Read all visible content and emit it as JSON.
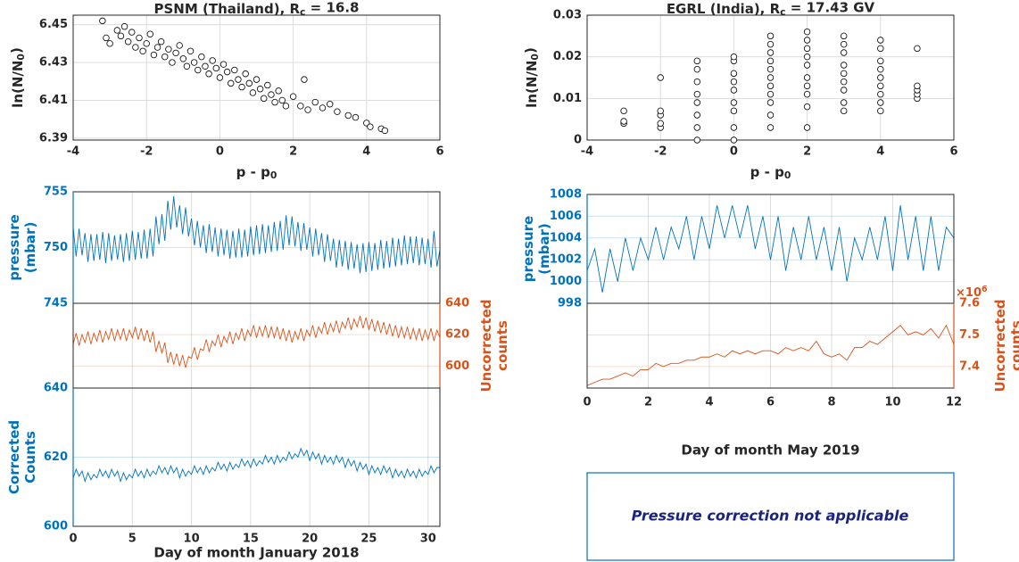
{
  "chart_data": [
    {
      "type": "scatter",
      "title": [
        "PSNM (Thailand), R",
        "c",
        " = 16.8"
      ],
      "xlabel": [
        "p - p",
        "0"
      ],
      "ylabel": [
        "ln(N/N",
        "0",
        ")"
      ],
      "xlim": [
        -4,
        6
      ],
      "xticks": [
        -4,
        -2,
        0,
        2,
        4,
        6
      ],
      "ylim": [
        6.389,
        6.455
      ],
      "yticks": [
        6.39,
        6.41,
        6.43,
        6.45
      ],
      "grid": true,
      "color": "#000000",
      "x": [
        -3.2,
        -3.1,
        -3,
        -2.8,
        -2.7,
        -2.6,
        -2.5,
        -2.4,
        -2.3,
        -2.2,
        -2.1,
        -2,
        -1.9,
        -1.8,
        -1.7,
        -1.6,
        -1.5,
        -1.4,
        -1.3,
        -1.2,
        -1.1,
        -1,
        -0.9,
        -0.8,
        -0.7,
        -0.6,
        -0.5,
        -0.4,
        -0.3,
        -0.2,
        -0.1,
        0,
        0.1,
        0.2,
        0.3,
        0.4,
        0.5,
        0.6,
        0.7,
        0.8,
        0.9,
        1,
        1.1,
        1.2,
        1.3,
        1.4,
        1.5,
        1.6,
        1.7,
        1.8,
        2,
        2.2,
        2.3,
        2.4,
        2.6,
        2.8,
        3,
        3.2,
        3.5,
        3.7,
        4,
        4.1,
        4.4,
        4.5
      ],
      "y": [
        6.452,
        6.443,
        6.44,
        6.447,
        6.444,
        6.449,
        6.441,
        6.446,
        6.438,
        6.443,
        6.436,
        6.44,
        6.445,
        6.434,
        6.438,
        6.441,
        6.433,
        6.437,
        6.43,
        6.435,
        6.439,
        6.432,
        6.428,
        6.436,
        6.43,
        6.426,
        6.433,
        6.428,
        6.424,
        6.431,
        6.427,
        6.422,
        6.429,
        6.425,
        6.419,
        6.426,
        6.421,
        6.417,
        6.424,
        6.419,
        6.414,
        6.421,
        6.416,
        6.411,
        6.418,
        6.413,
        6.409,
        6.415,
        6.41,
        6.407,
        6.412,
        6.407,
        6.421,
        6.405,
        6.409,
        6.406,
        6.408,
        6.404,
        6.402,
        6.401,
        6.398,
        6.396,
        6.395,
        6.394
      ]
    },
    {
      "type": "scatter",
      "title": [
        "EGRL (India), R",
        "c",
        " = 17.43 GV"
      ],
      "xlabel": [
        "p - p",
        "0"
      ],
      "ylabel": [
        "ln(N/N",
        "0",
        ")"
      ],
      "xlim": [
        -4,
        6
      ],
      "xticks": [
        -4,
        -2,
        0,
        2,
        4,
        6
      ],
      "ylim": [
        0,
        0.03
      ],
      "yticks": [
        0,
        0.01,
        0.02,
        0.03
      ],
      "grid": true,
      "color": "#000000",
      "x": [
        -3,
        -3,
        -3,
        -2,
        -2,
        -2,
        -2,
        -2,
        -1,
        -1,
        -1,
        -1,
        -1,
        -1,
        -1,
        -1,
        0,
        0,
        0,
        0,
        0,
        0,
        0,
        0,
        0,
        1,
        1,
        1,
        1,
        1,
        1,
        1,
        1,
        1,
        1,
        1,
        2,
        2,
        2,
        2,
        2,
        2,
        2,
        2,
        2,
        2,
        3,
        3,
        3,
        3,
        3,
        3,
        3,
        3,
        3,
        4,
        4,
        4,
        4,
        4,
        4,
        4,
        4,
        4,
        5,
        5,
        5,
        5,
        5
      ],
      "y": [
        0.004,
        0.0045,
        0.007,
        0.003,
        0.004,
        0.006,
        0.007,
        0.015,
        0,
        0.003,
        0.006,
        0.009,
        0.011,
        0.014,
        0.017,
        0.019,
        0,
        0.003,
        0.007,
        0.009,
        0.012,
        0.014,
        0.016,
        0.019,
        0.02,
        0.003,
        0.006,
        0.009,
        0.011,
        0.013,
        0.015,
        0.017,
        0.019,
        0.021,
        0.023,
        0.025,
        0.003,
        0.008,
        0.011,
        0.013,
        0.015,
        0.018,
        0.02,
        0.022,
        0.024,
        0.026,
        0.007,
        0.009,
        0.012,
        0.014,
        0.016,
        0.018,
        0.021,
        0.023,
        0.025,
        0.007,
        0.009,
        0.011,
        0.013,
        0.015,
        0.017,
        0.019,
        0.022,
        0.024,
        0.01,
        0.011,
        0.012,
        0.013,
        0.022
      ]
    },
    {
      "type": "line",
      "xlabel": "Day of month January 2018",
      "xlim": [
        0,
        31
      ],
      "xticks": [
        0,
        5,
        10,
        15,
        20,
        25,
        30
      ],
      "grid": true,
      "x": [
        0,
        0.25,
        0.5,
        0.75,
        1,
        1.25,
        1.5,
        1.75,
        2,
        2.25,
        2.5,
        2.75,
        3,
        3.25,
        3.5,
        3.75,
        4,
        4.25,
        4.5,
        4.75,
        5,
        5.25,
        5.5,
        5.75,
        6,
        6.25,
        6.5,
        6.75,
        7,
        7.25,
        7.5,
        7.75,
        8,
        8.25,
        8.5,
        8.75,
        9,
        9.25,
        9.5,
        9.75,
        10,
        10.25,
        10.5,
        10.75,
        11,
        11.25,
        11.5,
        11.75,
        12,
        12.25,
        12.5,
        12.75,
        13,
        13.25,
        13.5,
        13.75,
        14,
        14.25,
        14.5,
        14.75,
        15,
        15.25,
        15.5,
        15.75,
        16,
        16.25,
        16.5,
        16.75,
        17,
        17.25,
        17.5,
        17.75,
        18,
        18.25,
        18.5,
        18.75,
        19,
        19.25,
        19.5,
        19.75,
        20,
        20.25,
        20.5,
        20.75,
        21,
        21.25,
        21.5,
        21.75,
        22,
        22.25,
        22.5,
        22.75,
        23,
        23.25,
        23.5,
        23.75,
        24,
        24.25,
        24.5,
        24.75,
        25,
        25.25,
        25.5,
        25.75,
        26,
        26.25,
        26.5,
        26.75,
        27,
        27.25,
        27.5,
        27.75,
        28,
        28.25,
        28.5,
        28.75,
        29,
        29.25,
        29.5,
        29.75,
        30,
        30.25,
        30.5,
        30.75,
        31
      ],
      "series": [
        {
          "ylabel": [
            "pressure",
            "(mbar)"
          ],
          "side": "left",
          "color": "#0072BD",
          "ylim": [
            745,
            755
          ],
          "yticks": [
            745,
            750,
            755
          ],
          "values": [
            751.8,
            749.2,
            751.7,
            749.3,
            751.3,
            748.7,
            751.2,
            748.8,
            751.2,
            748.9,
            751.4,
            748.6,
            751.3,
            748.8,
            751.1,
            748.9,
            751.2,
            748.7,
            751.3,
            748.8,
            751.5,
            748.9,
            751.4,
            749,
            751.6,
            749,
            751.7,
            749.2,
            752.8,
            750.3,
            753,
            750.6,
            754.2,
            751.6,
            754.6,
            751.8,
            753.8,
            751.2,
            753.6,
            751,
            752.6,
            750.2,
            752.4,
            750,
            752,
            749.5,
            752.1,
            749.6,
            751.8,
            749.2,
            751.7,
            749.3,
            751.6,
            749,
            751.5,
            749.1,
            751.7,
            749.1,
            751.6,
            749.2,
            751.9,
            749.3,
            752,
            749.4,
            752.1,
            749.5,
            752,
            749.6,
            752.3,
            749.7,
            752.4,
            749.8,
            752.9,
            750.2,
            752.8,
            750.1,
            752.3,
            749.7,
            752.2,
            749.8,
            751.8,
            749.2,
            751.7,
            749.3,
            751.3,
            748.7,
            751.2,
            748.8,
            750.8,
            748.2,
            750.7,
            748.3,
            750.6,
            748,
            750.5,
            748.1,
            750.3,
            747.7,
            750.4,
            747.8,
            750.5,
            747.9,
            750.4,
            748,
            750.7,
            748.1,
            750.6,
            748.2,
            750.9,
            748.3,
            750.8,
            748.4,
            751.1,
            748.5,
            751,
            748.6,
            751,
            748.4,
            750.9,
            748.5,
            750.8,
            748.2,
            751.5,
            748.3,
            749.8
          ]
        },
        {
          "ylabel": [
            "Uncorrected",
            "counts"
          ],
          "side": "right",
          "color": "#D95319",
          "ylim": [
            586,
            640
          ],
          "yticks": [
            600,
            620,
            640
          ],
          "values": [
            614,
            621,
            613,
            620,
            615,
            622,
            614,
            621,
            616,
            623,
            615,
            622,
            617,
            624,
            616,
            623,
            617,
            624,
            616,
            623,
            618,
            625,
            617,
            624,
            616,
            623,
            615,
            622,
            609,
            616,
            608,
            615,
            602,
            609,
            601,
            608,
            600,
            607,
            599,
            606,
            605,
            612,
            604,
            611,
            610,
            617,
            609,
            616,
            613,
            620,
            612,
            619,
            615,
            622,
            614,
            621,
            617,
            624,
            616,
            623,
            619,
            626,
            618,
            625,
            619,
            626,
            618,
            625,
            618,
            625,
            617,
            624,
            616,
            623,
            615,
            622,
            617,
            624,
            616,
            623,
            619,
            626,
            618,
            625,
            621,
            628,
            620,
            627,
            622,
            629,
            621,
            628,
            624,
            631,
            623,
            630,
            625,
            632,
            624,
            631,
            623,
            630,
            622,
            629,
            621,
            628,
            620,
            627,
            619,
            626,
            618,
            625,
            618,
            625,
            617,
            624,
            617,
            624,
            616,
            623,
            617,
            624,
            616,
            623,
            618
          ]
        },
        {
          "ylabel": [
            "Corrected",
            "Counts"
          ],
          "side": "left",
          "color": "#0072BD",
          "ylim": [
            600,
            640
          ],
          "yticks": [
            600,
            620,
            640
          ],
          "values": [
            614,
            616.5,
            614.5,
            616,
            613,
            615.5,
            613.5,
            615,
            614,
            616.5,
            614.5,
            616,
            614,
            616.5,
            614.5,
            616,
            613,
            615.5,
            613.5,
            615,
            614,
            616.5,
            614.5,
            616,
            614,
            616.5,
            614.5,
            616,
            615,
            617.5,
            615.5,
            617,
            615,
            617.5,
            615.5,
            617,
            614,
            616.5,
            614.5,
            616,
            615,
            617.5,
            615.5,
            617,
            615,
            617.5,
            615.5,
            617,
            616,
            618.5,
            616.5,
            618,
            616,
            618.5,
            616.5,
            618,
            617,
            619.5,
            617.5,
            619,
            617,
            619.5,
            617.5,
            619,
            618,
            620.5,
            618.5,
            620,
            618,
            620.5,
            618.5,
            620,
            619,
            621.5,
            619.5,
            621,
            620,
            622.5,
            620.5,
            622,
            619,
            621.5,
            619.5,
            621,
            618,
            620.5,
            618.5,
            620,
            618,
            620.5,
            618.5,
            620,
            617,
            619.5,
            617.5,
            619,
            616,
            618.5,
            616.5,
            618,
            615,
            617.5,
            615.5,
            617,
            615,
            617.5,
            615.5,
            617,
            614,
            616.5,
            614.5,
            616,
            614,
            616.5,
            614.5,
            616,
            614,
            616.5,
            614.5,
            616,
            615,
            617.5,
            615.5,
            617,
            617
          ]
        }
      ]
    },
    {
      "type": "line",
      "xlabel": "Day of month May 2019",
      "xlim": [
        0,
        12
      ],
      "xticks": [
        0,
        2,
        4,
        6,
        8,
        10,
        12
      ],
      "grid": true,
      "x": [
        0,
        0.25,
        0.5,
        0.75,
        1,
        1.25,
        1.5,
        1.75,
        2,
        2.25,
        2.5,
        2.75,
        3,
        3.25,
        3.5,
        3.75,
        4,
        4.25,
        4.5,
        4.75,
        5,
        5.25,
        5.5,
        5.75,
        6,
        6.25,
        6.5,
        6.75,
        7,
        7.25,
        7.5,
        7.75,
        8,
        8.25,
        8.5,
        8.75,
        9,
        9.25,
        9.5,
        9.75,
        10,
        10.25,
        10.5,
        10.75,
        11,
        11.25,
        11.5,
        11.75,
        12
      ],
      "series": [
        {
          "ylabel": [
            "pressure",
            "(mbar)"
          ],
          "side": "left",
          "color": "#0072BD",
          "ylim": [
            998,
            1008
          ],
          "yticks": [
            998,
            1000,
            1002,
            1004,
            1006,
            1008
          ],
          "values": [
            1001,
            1003,
            999,
            1003,
            1000,
            1004,
            1001,
            1004,
            1002,
            1005,
            1002,
            1005,
            1003,
            1006,
            1002,
            1006,
            1003,
            1007,
            1004,
            1007,
            1004,
            1007,
            1003,
            1006,
            1002,
            1006,
            1001,
            1005,
            1002,
            1006,
            1002,
            1005,
            1001,
            1005,
            1000,
            1004,
            1002,
            1005,
            1002,
            1006,
            1001,
            1007,
            1002,
            1006,
            1001,
            1006,
            1001,
            1005,
            1004
          ]
        },
        {
          "ylabel": [
            "Uncorrected",
            "counts"
          ],
          "side": "right",
          "color": "#D95319",
          "ylim": [
            7.332,
            7.6
          ],
          "yticks": [
            7.4,
            7.5,
            7.6
          ],
          "exponent": [
            "×10",
            "6"
          ],
          "values": [
            7.34,
            7.35,
            7.36,
            7.36,
            7.37,
            7.38,
            7.37,
            7.39,
            7.39,
            7.41,
            7.4,
            7.41,
            7.41,
            7.42,
            7.42,
            7.43,
            7.43,
            7.44,
            7.43,
            7.45,
            7.44,
            7.45,
            7.44,
            7.45,
            7.45,
            7.44,
            7.46,
            7.45,
            7.46,
            7.45,
            7.48,
            7.44,
            7.43,
            7.44,
            7.42,
            7.46,
            7.46,
            7.48,
            7.47,
            7.49,
            7.51,
            7.53,
            7.5,
            7.51,
            7.5,
            7.52,
            7.49,
            7.53,
            7.47
          ]
        }
      ]
    }
  ],
  "note": "Pressure correction not applicable"
}
